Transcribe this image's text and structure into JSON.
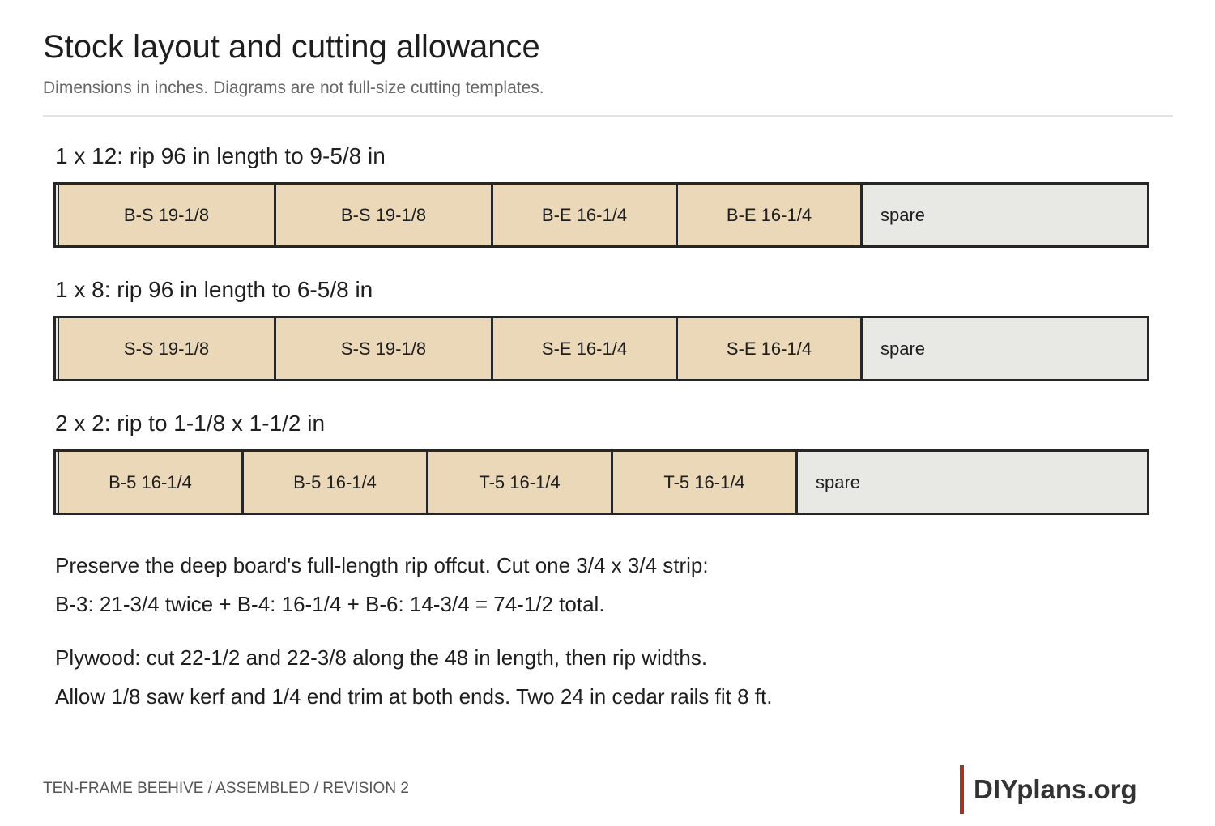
{
  "header": {
    "title": "Stock layout and cutting allowance",
    "subtitle": "Dimensions in inches. Diagrams are not full-size cutting templates."
  },
  "boards": [
    {
      "heading": "1 x 12: rip 96 in length to 9-5/8 in",
      "pieces": [
        {
          "label": "B-S 19-1/8",
          "length": 19.125
        },
        {
          "label": "B-S 19-1/8",
          "length": 19.125
        },
        {
          "label": "B-E 16-1/4",
          "length": 16.25
        },
        {
          "label": "B-E 16-1/4",
          "length": 16.25
        }
      ],
      "spare_label": "spare"
    },
    {
      "heading": "1 x 8: rip 96 in length to 6-5/8 in",
      "pieces": [
        {
          "label": "S-S 19-1/8",
          "length": 19.125
        },
        {
          "label": "S-S 19-1/8",
          "length": 19.125
        },
        {
          "label": "S-E 16-1/4",
          "length": 16.25
        },
        {
          "label": "S-E 16-1/4",
          "length": 16.25
        }
      ],
      "spare_label": "spare"
    },
    {
      "heading": "2 x 2: rip to 1-1/8 x 1-1/2 in",
      "pieces": [
        {
          "label": "B-5 16-1/4",
          "length": 16.25
        },
        {
          "label": "B-5 16-1/4",
          "length": 16.25
        },
        {
          "label": "T-5 16-1/4",
          "length": 16.25
        },
        {
          "label": "T-5 16-1/4",
          "length": 16.25
        }
      ],
      "spare_label": "spare"
    }
  ],
  "notes": [
    "Preserve the deep board's full-length rip offcut. Cut one 3/4 x 3/4 strip:",
    "B-3: 21-3/4 twice + B-4: 16-1/4 + B-6: 14-3/4 = 74-1/2 total.",
    "Plywood: cut 22-1/2 and 22-3/8 along the 48 in length, then rip widths.",
    "Allow 1/8 saw kerf and 1/4 end trim at both ends. Two 24 in cedar rails fit 8 ft."
  ],
  "footer": {
    "caption": "TEN-FRAME BEEHIVE / ASSEMBLED / REVISION 2",
    "logo": "DIYplans.org"
  },
  "colors": {
    "piece_fill": "#ebd8b9",
    "spare_fill": "#e8e8e4",
    "outline": "#262626",
    "logo_accent": "#a8321f"
  }
}
